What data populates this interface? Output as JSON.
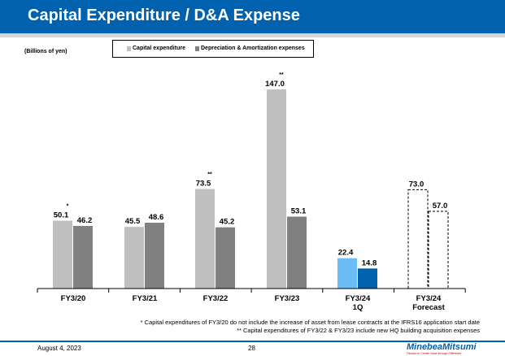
{
  "header": {
    "title": "Capital Expenditure / D&A Expense"
  },
  "chart_data": {
    "type": "bar",
    "unit_label": "(Billions of yen)",
    "categories": [
      "FY3/20",
      "FY3/21",
      "FY3/22",
      "FY3/23",
      "FY3/24\n1Q",
      "FY3/24\nForecast"
    ],
    "series": [
      {
        "name": "Capital expenditure",
        "values": [
          50.1,
          45.5,
          73.5,
          147.0,
          22.4,
          73.0
        ],
        "labels": [
          "50.1",
          "45.5",
          "73.5",
          "147.0",
          "22.4",
          "73.0"
        ],
        "marks": [
          "*",
          "",
          "**",
          "**",
          "",
          ""
        ]
      },
      {
        "name": "Depreciation & Amortization expenses",
        "values": [
          46.2,
          48.6,
          45.2,
          53.1,
          14.8,
          57.0
        ],
        "labels": [
          "46.2",
          "48.6",
          "45.2",
          "53.1",
          "14.8",
          "57.0"
        ]
      }
    ],
    "colors": {
      "capex": "#c0c0c0",
      "da": "#808080",
      "capex_1q": "#6cbdf5",
      "da_1q": "#0062ae",
      "forecast": "dashed outline"
    },
    "ylim": [
      0,
      150
    ],
    "grid": false,
    "legend": "top"
  },
  "notes": [
    "* Capital expenditures of FY3/20 do not include the increase of asset from lease contracts at the IFRS16 application start date",
    "** Capital expenditures of FY3/22 & FY3/23 include new HQ building acquisition expenses"
  ],
  "footer": {
    "date": "August 4, 2023",
    "page": "28",
    "logo": "MinebeaMitsumi",
    "tagline": "Passion to Create Value through Difference"
  }
}
